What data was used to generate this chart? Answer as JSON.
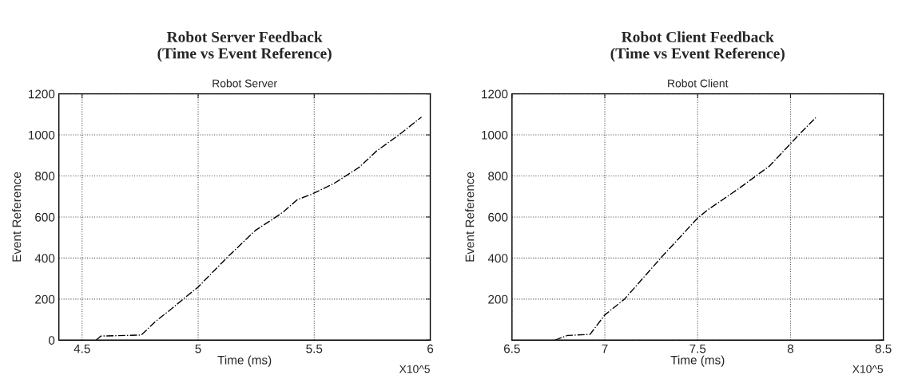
{
  "chart_data": [
    {
      "type": "line",
      "title": "Robot Server Feedback\n(Time vs Event Reference)",
      "subtitle": "Robot Server",
      "xlabel": "Time (ms)",
      "ylabel": "Event Reference",
      "annotations": [
        "X10^5"
      ],
      "series": [
        {
          "color": "#000000",
          "x": [
            4.561,
            4.58,
            4.755,
            4.815,
            4.88,
            4.943,
            5.0,
            5.125,
            5.246,
            5.343,
            5.368,
            5.428,
            5.489,
            5.586,
            5.695,
            5.768,
            5.865,
            5.962
          ],
          "values": [
            0,
            20,
            25,
            90,
            148,
            207,
            259,
            403,
            534,
            606,
            626,
            685,
            711,
            764,
            843,
            921,
            1000,
            1087
          ]
        }
      ],
      "xlim": [
        4.4,
        6
      ],
      "xticks": [
        4.5,
        5,
        5.5,
        6
      ],
      "ylim": [
        0,
        1200
      ],
      "yticks": [
        0,
        200,
        400,
        600,
        800,
        1000,
        1200
      ],
      "grid": true,
      "line_style": "dashed"
    },
    {
      "type": "line",
      "title": "Robot Client Feedback\n(Time vs Event Reference)",
      "subtitle": "Robot Client",
      "xlabel": "Time (ms)",
      "ylabel": "Event Reference",
      "annotations": [
        "X10^5"
      ],
      "series": [
        {
          "color": "#000000",
          "x": [
            6.731,
            6.799,
            6.92,
            7.0,
            7.106,
            7.302,
            7.5,
            7.553,
            7.719,
            7.885,
            8.0,
            8.04,
            8.136
          ],
          "values": [
            0,
            23,
            28,
            123,
            200,
            401,
            595,
            634,
            737,
            847,
            957,
            996,
            1084
          ]
        }
      ],
      "xlim": [
        6.5,
        8.5
      ],
      "xticks": [
        6.5,
        7,
        7.5,
        8,
        8.5
      ],
      "ylim": [
        0,
        1200
      ],
      "yticks": [
        {
          "value": 0,
          "label": null
        },
        200,
        400,
        600,
        800,
        1000,
        1200
      ],
      "grid": true,
      "line_style": "dashed"
    }
  ]
}
